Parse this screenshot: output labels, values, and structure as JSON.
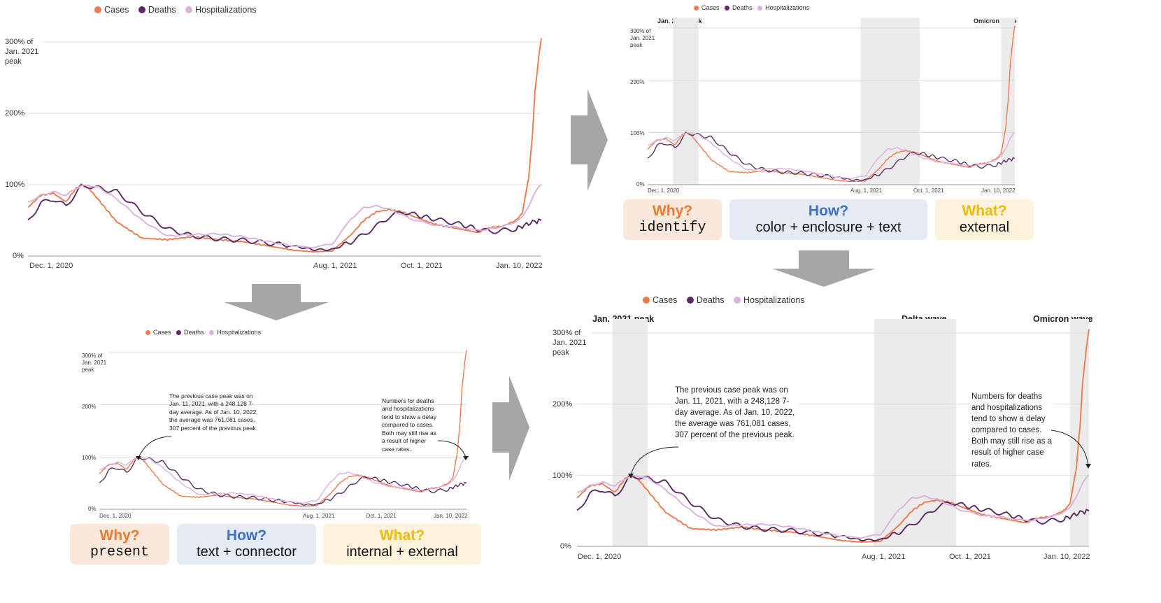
{
  "colors": {
    "cases": "#ec7a4c",
    "deaths": "#5b2a63",
    "hospitalizations": "#dcb0dc",
    "why": "#ee7a2e",
    "how": "#3d6fcf",
    "what": "#f4b800",
    "why_bg": "#fbe8dd",
    "how_bg": "#e5eaf5",
    "what_bg": "#fdf3dc",
    "shade": "#ebebeb",
    "arrow": "#a6a6a6"
  },
  "legend": {
    "cases": "Cases",
    "deaths": "Deaths",
    "hospitalizations": "Hospitalizations"
  },
  "axis": {
    "y_top": "300% of Jan. 2021 peak",
    "y_top_line1": "300% of",
    "y_top_line2": "Jan. 2021",
    "y_top_line3": "peak",
    "y_200": "200%",
    "y_100": "100%",
    "y_0": "0%",
    "x_dec": "Dec. 1, 2020",
    "x_aug": "Aug. 1, 2021",
    "x_oct": "Oct. 1, 2021",
    "x_jan": "Jan. 10, 2022"
  },
  "waves": {
    "jan_peak": "Jan. 2021 peak",
    "delta": "Delta wave",
    "omicron": "Omicron wave"
  },
  "annotations": {
    "previous_peak": "The previous case peak was on Jan. 11, 2021, with a 248,128 7-day average. As of Jan. 10, 2022, the average was 761,081 cases, 307 percent of the previous peak.",
    "delay": "Numbers for deaths and hospitalizations tend to show a delay compared to cases. Both may still rise as a result of higher case rates."
  },
  "tags_top": {
    "why_q": "Why?",
    "why_a": "identify",
    "how_q": "How?",
    "how_a": "color + enclosure + text",
    "what_q": "What?",
    "what_a": "external"
  },
  "tags_bottom": {
    "why_q": "Why?",
    "why_a": "present",
    "how_q": "How?",
    "how_a": "text + connector",
    "what_q": "What?",
    "what_a": "internal + external"
  },
  "chart_data": {
    "type": "line",
    "title": "",
    "xlabel": "",
    "ylabel": "300% of Jan. 2021 peak",
    "x_ticks": [
      "Dec. 1, 2020",
      "Aug. 1, 2021",
      "Oct. 1, 2021",
      "Jan. 10, 2022"
    ],
    "x_tick_days": [
      0,
      243,
      304,
      405
    ],
    "ylim": [
      0,
      300
    ],
    "y_ticks": [
      0,
      100,
      200,
      300
    ],
    "x_days": [
      0,
      10,
      20,
      30,
      38,
      42,
      48,
      56,
      70,
      90,
      110,
      130,
      150,
      170,
      190,
      210,
      225,
      240,
      255,
      265,
      275,
      285,
      295,
      305,
      320,
      340,
      355,
      365,
      375,
      385,
      390,
      395,
      398,
      400,
      403,
      405
    ],
    "series": [
      {
        "name": "Cases",
        "values": [
          68,
          85,
          88,
          76,
          95,
          100,
          95,
          78,
          48,
          25,
          23,
          27,
          23,
          20,
          14,
          8,
          6,
          7,
          30,
          50,
          62,
          65,
          62,
          55,
          45,
          38,
          33,
          40,
          42,
          50,
          60,
          110,
          170,
          230,
          280,
          305
        ]
      },
      {
        "name": "Deaths",
        "values": [
          48,
          74,
          80,
          70,
          88,
          97,
          98,
          95,
          90,
          62,
          38,
          28,
          24,
          22,
          18,
          14,
          9,
          9,
          20,
          30,
          42,
          55,
          62,
          58,
          52,
          45,
          38,
          34,
          36,
          38,
          42,
          45,
          47,
          48,
          49,
          50
        ]
      },
      {
        "name": "Hospitalizations",
        "values": [
          75,
          85,
          90,
          85,
          95,
          98,
          99,
          96,
          80,
          50,
          28,
          30,
          31,
          27,
          20,
          14,
          12,
          17,
          52,
          68,
          70,
          66,
          58,
          50,
          44,
          40,
          36,
          38,
          42,
          48,
          55,
          70,
          82,
          90,
          98,
          100
        ]
      }
    ],
    "highlights": [
      {
        "label": "Jan. 2021 peak",
        "from_day": 28,
        "to_day": 56
      },
      {
        "label": "Delta wave",
        "from_day": 235,
        "to_day": 300
      },
      {
        "label": "Omicron wave",
        "from_day": 390,
        "to_day": 405
      }
    ]
  }
}
